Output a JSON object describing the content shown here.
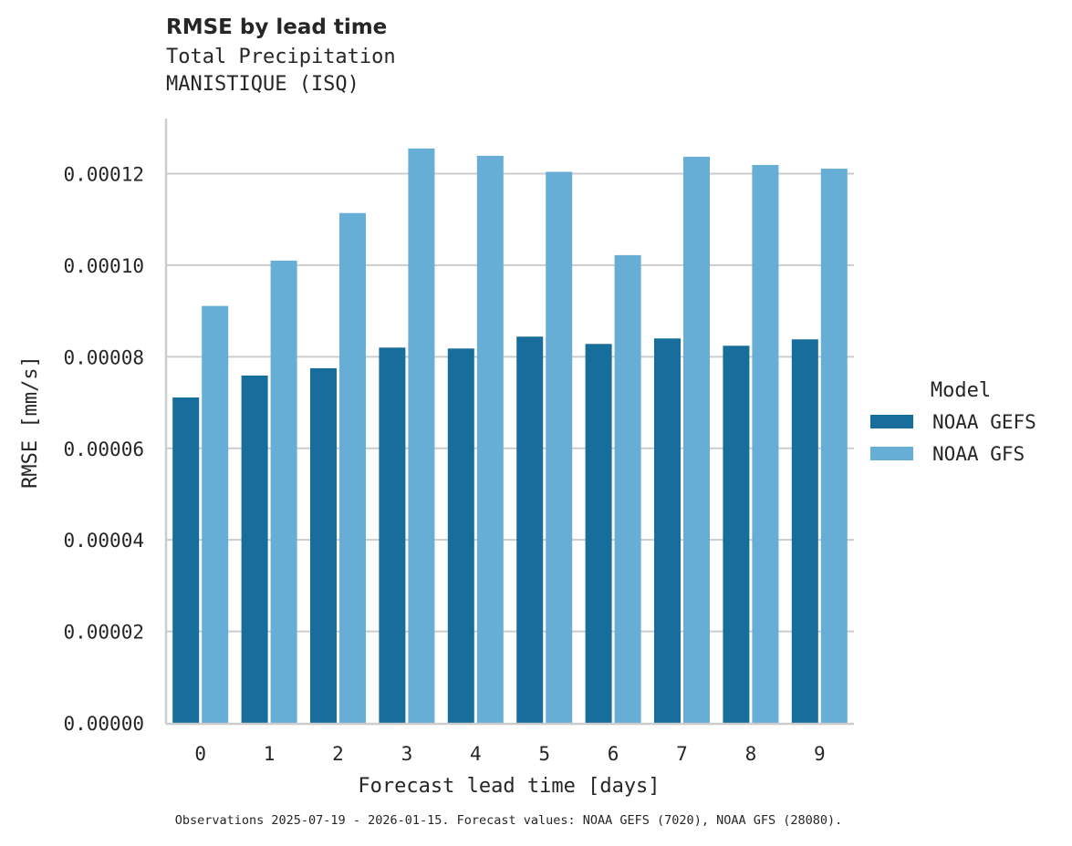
{
  "header": {
    "title": "RMSE by lead time",
    "subtitle_line1": "Total Precipitation",
    "subtitle_line2": "MANISTIQUE (ISQ)"
  },
  "footnote": "Observations 2025-07-19 - 2026-01-15. Forecast values: NOAA GEFS (7020), NOAA GFS (28080).",
  "colors": {
    "NOAA GEFS": "#176d9c",
    "NOAA GFS": "#67aed6",
    "grid": "#cccccc",
    "axis": "#cccccc"
  },
  "chart_data": {
    "type": "bar",
    "title": "RMSE by lead time",
    "subtitle": "Total Precipitation\nMANISTIQUE (ISQ)",
    "xlabel": "Forecast lead time [days]",
    "ylabel": "RMSE [mm/s]",
    "categories": [
      "0",
      "1",
      "2",
      "3",
      "4",
      "5",
      "6",
      "7",
      "8",
      "9"
    ],
    "series": [
      {
        "name": "NOAA GEFS",
        "values": [
          7.11e-05,
          7.59e-05,
          7.75e-05,
          8.2e-05,
          8.18e-05,
          8.44e-05,
          8.28e-05,
          8.4e-05,
          8.24e-05,
          8.38e-05
        ]
      },
      {
        "name": "NOAA GFS",
        "values": [
          9.11e-05,
          0.000101,
          0.0001114,
          0.0001255,
          0.0001239,
          0.0001204,
          0.0001022,
          0.0001237,
          0.0001219,
          0.0001211
        ]
      }
    ],
    "yticks": [
      "0.00000",
      "0.00002",
      "0.00004",
      "0.00006",
      "0.00008",
      "0.00010",
      "0.00012"
    ],
    "ylim": [
      0,
      0.000132
    ],
    "grid": "horizontal",
    "legend": {
      "title": "Model",
      "position": "right",
      "entries": [
        "NOAA GEFS",
        "NOAA GFS"
      ]
    }
  }
}
